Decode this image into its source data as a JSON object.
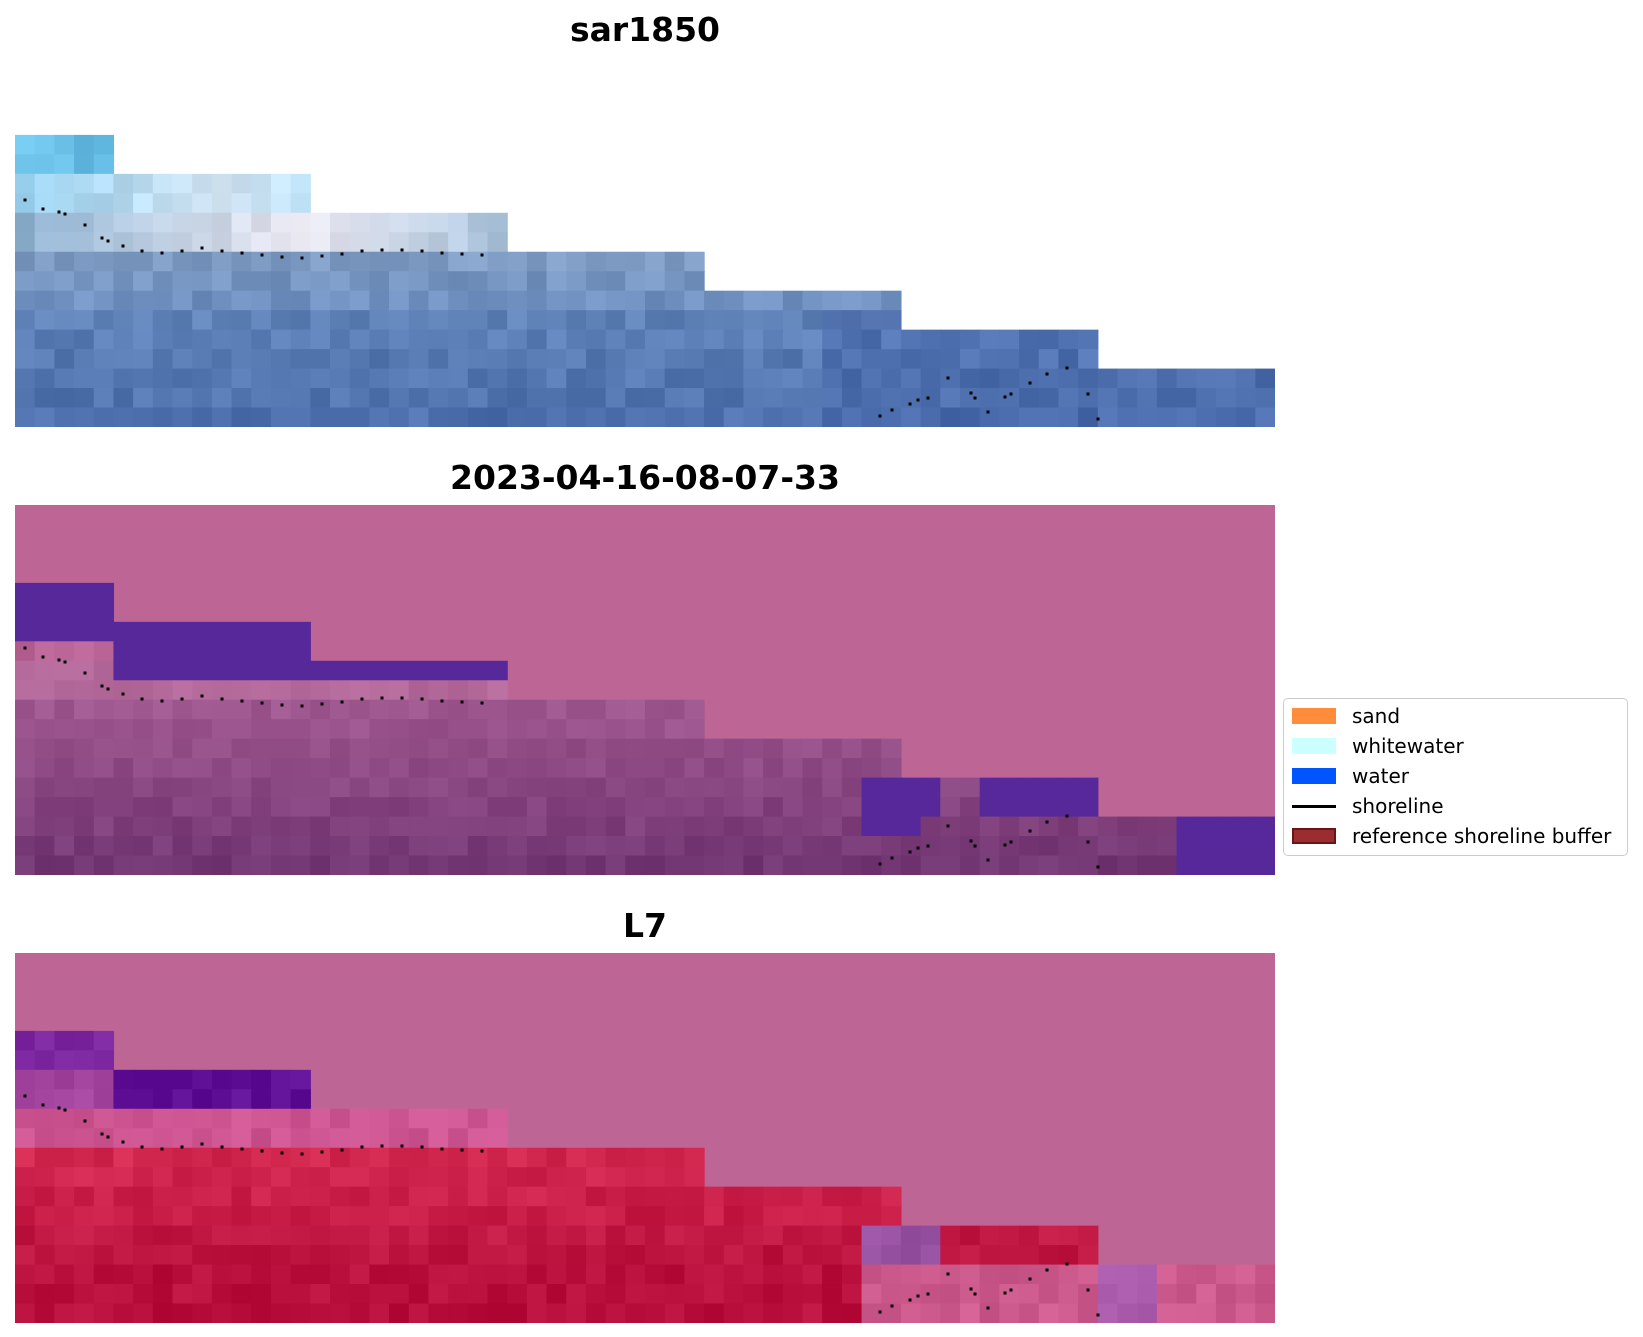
{
  "panels": [
    {
      "id": "rgb",
      "title": "sar1850",
      "scheme": "rgb"
    },
    {
      "id": "classified",
      "title": "2023-04-16-08-07-33",
      "scheme": "classified"
    },
    {
      "id": "index",
      "title": "L7",
      "scheme": "index"
    }
  ],
  "legend": {
    "items": [
      {
        "label": "sand",
        "type": "patch",
        "color": "#ff8c3a"
      },
      {
        "label": "whitewater",
        "type": "patch",
        "color": "#ccffff"
      },
      {
        "label": "water",
        "type": "patch",
        "color": "#0055ff"
      },
      {
        "label": "shoreline",
        "type": "line",
        "color": "#000000"
      },
      {
        "label": "reference shoreline buffer",
        "type": "patch",
        "color": "#9b2d30",
        "edge": "#6b1418"
      }
    ]
  },
  "colors": {
    "buffer": "#bd6695",
    "water_overlay": "#572899",
    "shoreline_dots": "#000000"
  }
}
